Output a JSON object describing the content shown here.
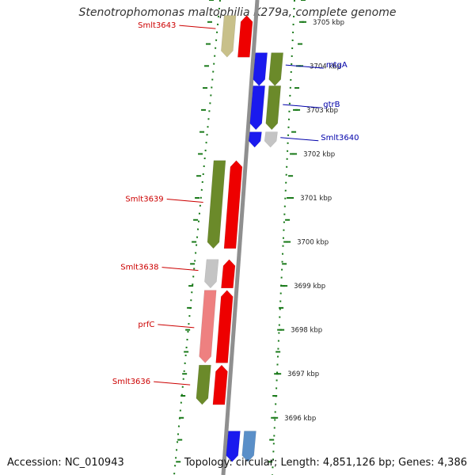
{
  "title": "Stenotrophomonas maltophilia K279a, complete genome",
  "footer": {
    "accession": "Accession: NC_010943",
    "topology": "Topology: circular; Length: 4,851,126 bp; Genes: 4,386"
  },
  "colors": {
    "backbone": "#8f8f8f",
    "tick_green": "#1a7a1a",
    "label_red": "#cc0000",
    "label_blue": "#0000aa",
    "red_gene": "#ee0000",
    "blue_gene": "#1a1aee",
    "olive_gene": "#6b8a2a",
    "khaki_gene": "#c8c08a",
    "grey_gene": "#c4c4c4",
    "pink_gene": "#ee8080",
    "light_blue_gene": "#5a8fc8"
  },
  "position_ticks": [
    {
      "label": "3705 kbp",
      "kbp": 3705
    },
    {
      "label": "3704 kbp",
      "kbp": 3704
    },
    {
      "label": "3703 kbp",
      "kbp": 3703
    },
    {
      "label": "3702 kbp",
      "kbp": 3702
    },
    {
      "label": "3701 kbp",
      "kbp": 3701
    },
    {
      "label": "3700 kbp",
      "kbp": 3700
    },
    {
      "label": "3699 kbp",
      "kbp": 3699
    },
    {
      "label": "3698 kbp",
      "kbp": 3698
    },
    {
      "label": "3697 kbp",
      "kbp": 3697
    },
    {
      "label": "3696 kbp",
      "kbp": 3696
    }
  ],
  "genes_left": [
    {
      "name": "Smlt3643",
      "start_kbp": 3704.2,
      "end_kbp": 3705.15,
      "color": "#c8c08a",
      "strand": "inner"
    },
    {
      "name": "Smlt3643",
      "start_kbp": 3704.2,
      "end_kbp": 3705.15,
      "color": "#ee0000",
      "strand": "outer"
    },
    {
      "name": "Smlt3639",
      "start_kbp": 3699.85,
      "end_kbp": 3701.85,
      "color": "#6b8a2a",
      "strand": "inner"
    },
    {
      "name": "Smlt3639",
      "start_kbp": 3699.85,
      "end_kbp": 3701.85,
      "color": "#ee0000",
      "strand": "outer"
    },
    {
      "name": "Smlt3638",
      "start_kbp": 3698.95,
      "end_kbp": 3699.6,
      "color": "#c4c4c4",
      "strand": "inner"
    },
    {
      "name": "Smlt3638",
      "start_kbp": 3698.95,
      "end_kbp": 3699.6,
      "color": "#ee0000",
      "strand": "outer"
    },
    {
      "name": "prfC",
      "start_kbp": 3697.25,
      "end_kbp": 3698.9,
      "color": "#ee8080",
      "strand": "inner"
    },
    {
      "name": "prfC",
      "start_kbp": 3697.25,
      "end_kbp": 3698.9,
      "color": "#ee0000",
      "strand": "outer"
    },
    {
      "name": "Smlt3636",
      "start_kbp": 3696.3,
      "end_kbp": 3697.2,
      "color": "#6b8a2a",
      "strand": "inner"
    },
    {
      "name": "Smlt3636",
      "start_kbp": 3696.3,
      "end_kbp": 3697.2,
      "color": "#ee0000",
      "strand": "outer"
    }
  ],
  "genes_right": [
    {
      "name": "mtgA",
      "start_kbp": 3703.55,
      "end_kbp": 3704.3,
      "color": "#1a1aee",
      "strand": "inner"
    },
    {
      "name": "mtgA",
      "start_kbp": 3703.55,
      "end_kbp": 3704.3,
      "color": "#6b8a2a",
      "strand": "outer"
    },
    {
      "name": "gtrB",
      "start_kbp": 3702.55,
      "end_kbp": 3703.55,
      "color": "#1a1aee",
      "strand": "inner"
    },
    {
      "name": "gtrB",
      "start_kbp": 3702.55,
      "end_kbp": 3703.55,
      "color": "#6b8a2a",
      "strand": "outer"
    },
    {
      "name": "Smlt3640",
      "start_kbp": 3702.15,
      "end_kbp": 3702.5,
      "color": "#1a1aee",
      "strand": "inner"
    },
    {
      "name": "Smlt3640",
      "start_kbp": 3702.15,
      "end_kbp": 3702.5,
      "color": "#c4c4c4",
      "strand": "outer"
    },
    {
      "name": "",
      "start_kbp": 3695.0,
      "end_kbp": 3695.7,
      "color": "#1a1aee",
      "strand": "inner"
    },
    {
      "name": "",
      "start_kbp": 3695.0,
      "end_kbp": 3695.7,
      "color": "#5a8fc8",
      "strand": "outer"
    }
  ],
  "labels": [
    {
      "text": "Smlt3643",
      "side": "left",
      "kbp": 3704.85
    },
    {
      "text": "Smlt3639",
      "side": "left",
      "kbp": 3700.9
    },
    {
      "text": "Smlt3638",
      "side": "left",
      "kbp": 3699.35
    },
    {
      "text": "prfC",
      "side": "left",
      "kbp": 3698.05
    },
    {
      "text": "Smlt3636",
      "side": "left",
      "kbp": 3696.75
    },
    {
      "text": "mtgA",
      "side": "right",
      "kbp": 3703.95
    },
    {
      "text": "gtrB",
      "side": "right",
      "kbp": 3703.05
    },
    {
      "text": "Smlt3640",
      "side": "right",
      "kbp": 3702.3
    }
  ]
}
